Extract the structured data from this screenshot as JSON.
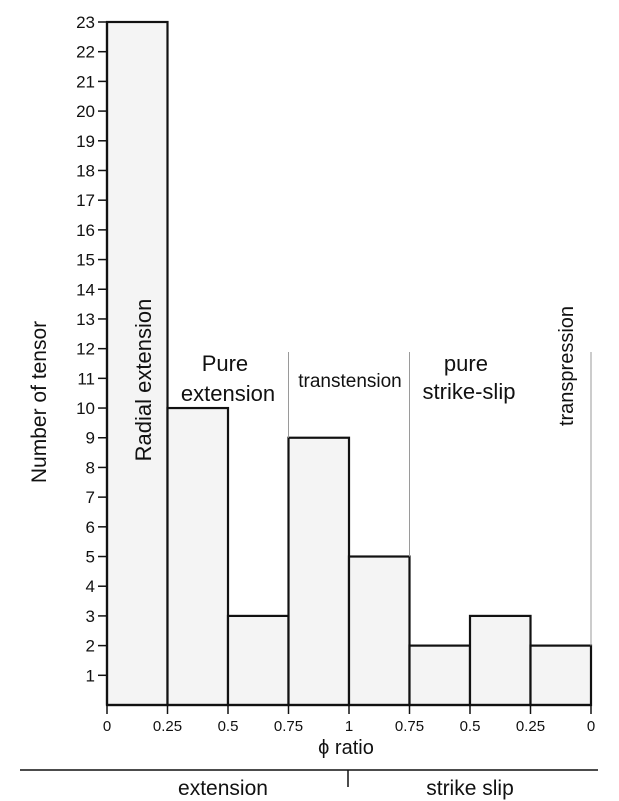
{
  "chart_data": {
    "type": "bar",
    "ylabel": "Number of tensor",
    "xlabel": "ϕ ratio",
    "ylim": [
      0,
      23
    ],
    "yticks": [
      1,
      2,
      3,
      4,
      5,
      6,
      7,
      8,
      9,
      10,
      11,
      12,
      13,
      14,
      15,
      16,
      17,
      18,
      19,
      20,
      21,
      22,
      23
    ],
    "x_tick_labels": [
      "0",
      "0.25",
      "0.5",
      "0.75",
      "1",
      "0.75",
      "0.5",
      "0.25",
      "0"
    ],
    "bins": [
      {
        "from": "0",
        "to": "0.25",
        "value": 23
      },
      {
        "from": "0.25",
        "to": "0.5",
        "value": 10
      },
      {
        "from": "0.5",
        "to": "0.75",
        "value": 3
      },
      {
        "from": "0.75",
        "to": "1",
        "value": 9
      },
      {
        "from": "1",
        "to": "0.75",
        "value": 5
      },
      {
        "from": "0.75",
        "to": "0.5",
        "value": 2
      },
      {
        "from": "0.5",
        "to": "0.25",
        "value": 3
      },
      {
        "from": "0.25",
        "to": "0",
        "value": 2
      }
    ],
    "regime_labels": [
      {
        "label": "Radial extension",
        "orientation": "vertical"
      },
      {
        "label": "Pure extension",
        "lines": [
          "Pure",
          "extension"
        ],
        "orientation": "horizontal"
      },
      {
        "label": "transtension",
        "orientation": "horizontal"
      },
      {
        "label": "pure strike-slip",
        "lines": [
          "pure",
          "strike-slip"
        ],
        "orientation": "horizontal"
      },
      {
        "label": "transpression",
        "orientation": "vertical"
      }
    ],
    "regime_groups": [
      "extension",
      "strike slip"
    ],
    "colors": {
      "bar_fill": "#f4f4f4",
      "bar_stroke": "#111111",
      "divider": "#9a9a9a"
    }
  }
}
